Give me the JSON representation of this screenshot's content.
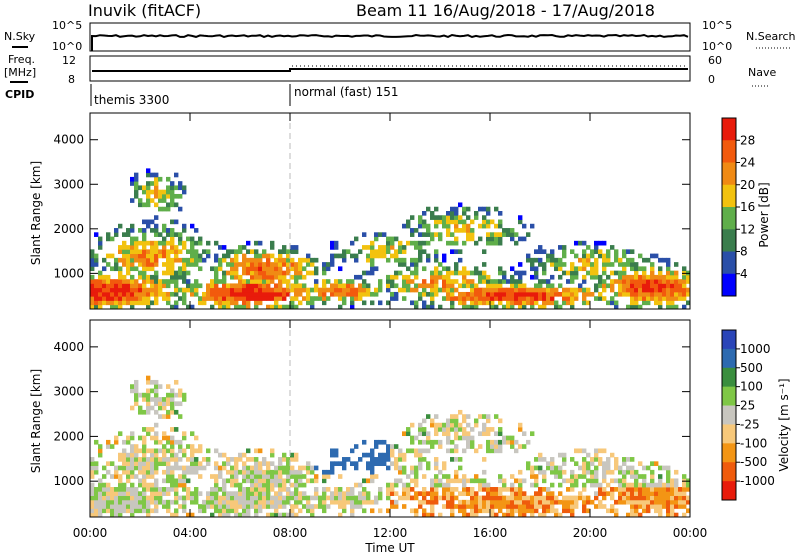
{
  "header": {
    "station": "Inuvik (fitACF)",
    "beam_date": "Beam 11  16/Aug/2018 - 17/Aug/2018"
  },
  "strip_labels": {
    "nsky": "N.Sky",
    "nsky_ticks": [
      "10^5",
      "10^0"
    ],
    "nsearch": "N.Search",
    "nsearch_ticks": [
      "10^5",
      "10^0"
    ],
    "freq": "Freq.",
    "freq_unit": "[MHz]",
    "freq_ticks": [
      "12",
      "8"
    ],
    "nave": "Nave",
    "nave_ticks": [
      "60",
      "0"
    ],
    "cpid": "CPID",
    "cpid_modes": [
      "themis 3300",
      "normal (fast) 151"
    ]
  },
  "colors": {
    "power_scale": [
      "#0000ff",
      "#2a4fa8",
      "#3a7d4d",
      "#5fae4a",
      "#f2c20f",
      "#f08a14",
      "#f25a0d",
      "#e81b0b"
    ],
    "velocity_scale": [
      "#e81b0b",
      "#ef5b0c",
      "#f39514",
      "#f7c87a",
      "#c8c6bf",
      "#7fc746",
      "#3a8e3e",
      "#2d6ab0",
      "#2a45b8"
    ]
  },
  "chart_data": [
    {
      "type": "heatmap",
      "name": "power",
      "ylabel": "Slant Range [km]",
      "yticks": [
        "1000",
        "2000",
        "3000",
        "4000"
      ],
      "ylim": [
        200,
        4600
      ],
      "xlim_hours": [
        0,
        24
      ],
      "colorbar": {
        "label": "Power [dB]",
        "ticks": [
          "4",
          "8",
          "12",
          "16",
          "20",
          "24",
          "28"
        ]
      }
    },
    {
      "type": "heatmap",
      "name": "velocity",
      "ylabel": "Slant Range [km]",
      "yticks": [
        "1000",
        "2000",
        "3000",
        "4000"
      ],
      "ylim": [
        200,
        4600
      ],
      "xlim_hours": [
        0,
        24
      ],
      "xticks": [
        "00:00",
        "04:00",
        "08:00",
        "12:00",
        "16:00",
        "20:00",
        "00:00"
      ],
      "xlabel": "Time UT",
      "colorbar": {
        "label": "Velocity [m s⁻¹]",
        "ticks": [
          "1000",
          "500",
          "100",
          "25",
          "-25",
          "-100",
          "-500",
          "-1000"
        ]
      }
    }
  ]
}
